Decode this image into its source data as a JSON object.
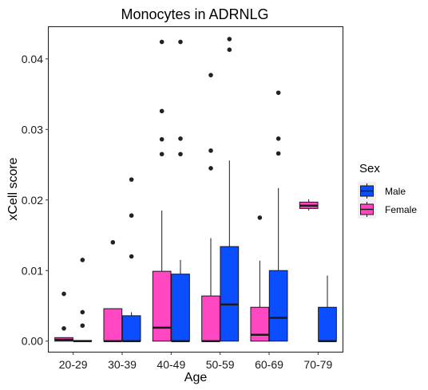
{
  "chart_data": {
    "type": "boxplot",
    "title": "Monocytes in ADRNLG",
    "xlabel": "Age",
    "ylabel": "xCell score",
    "ylim": [
      -0.0015,
      0.0445
    ],
    "yticks": [
      0.0,
      0.01,
      0.02,
      0.03,
      0.04
    ],
    "ytick_labels": [
      "0.00",
      "0.01",
      "0.02",
      "0.03",
      "0.04"
    ],
    "categories": [
      "20-29",
      "30-39",
      "40-49",
      "50-59",
      "60-69",
      "70-79"
    ],
    "grid": false,
    "legend": {
      "title": "Sex",
      "position": "right",
      "entries": [
        "Male",
        "Female"
      ]
    },
    "series": [
      {
        "name": "Female",
        "color": "#FF47C1",
        "boxes": [
          {
            "category": "20-29",
            "whisker_low": 0.0,
            "q1": 0.0,
            "median": 0.0002,
            "q3": 0.0005,
            "whisker_high": 0.0005,
            "outliers": [
              0.0018,
              0.0067
            ]
          },
          {
            "category": "30-39",
            "whisker_low": 0.0,
            "q1": 0.0,
            "median": 0.0,
            "q3": 0.0046,
            "whisker_high": 0.0046,
            "outliers": [
              0.014
            ]
          },
          {
            "category": "40-49",
            "whisker_low": 0.0,
            "q1": 0.0,
            "median": 0.0019,
            "q3": 0.0099,
            "whisker_high": 0.0185,
            "outliers": [
              0.0265,
              0.0286,
              0.0326,
              0.0424
            ]
          },
          {
            "category": "50-59",
            "whisker_low": 0.0,
            "q1": 0.0,
            "median": 0.0,
            "q3": 0.0064,
            "whisker_high": 0.0146,
            "outliers": [
              0.0245,
              0.027,
              0.0377
            ]
          },
          {
            "category": "60-69",
            "whisker_low": 0.0,
            "q1": 0.0,
            "median": 0.0009,
            "q3": 0.0048,
            "whisker_high": 0.0114,
            "outliers": [
              0.0175
            ]
          },
          {
            "category": "70-79",
            "whisker_low": 0.0185,
            "q1": 0.0188,
            "median": 0.0192,
            "q3": 0.0197,
            "whisker_high": 0.0201,
            "outliers": []
          }
        ]
      },
      {
        "name": "Male",
        "color": "#0A4EFF",
        "boxes": [
          {
            "category": "20-29",
            "whisker_low": 0.0,
            "q1": 0.0,
            "median": 0.0,
            "q3": 0.0001,
            "whisker_high": 0.0001,
            "outliers": [
              0.0022,
              0.0041,
              0.0115
            ]
          },
          {
            "category": "30-39",
            "whisker_low": 0.0,
            "q1": 0.0,
            "median": 0.0,
            "q3": 0.0036,
            "whisker_high": 0.0041,
            "outliers": [
              0.012,
              0.0178,
              0.0229
            ]
          },
          {
            "category": "40-49",
            "whisker_low": 0.0,
            "q1": 0.0,
            "median": 0.0,
            "q3": 0.0095,
            "whisker_high": 0.0115,
            "outliers": [
              0.0265,
              0.0287,
              0.0424
            ]
          },
          {
            "category": "50-59",
            "whisker_low": 0.0,
            "q1": 0.0,
            "median": 0.0052,
            "q3": 0.0134,
            "whisker_high": 0.0256,
            "outliers": [
              0.0413,
              0.0428
            ]
          },
          {
            "category": "60-69",
            "whisker_low": 0.0,
            "q1": 0.0,
            "median": 0.0033,
            "q3": 0.01,
            "whisker_high": 0.0217,
            "outliers": [
              0.0266,
              0.0287,
              0.0352
            ]
          },
          {
            "category": "70-79",
            "whisker_low": 0.0,
            "q1": 0.0,
            "median": 0.0,
            "q3": 0.0048,
            "whisker_high": 0.0093,
            "outliers": []
          }
        ]
      }
    ]
  }
}
